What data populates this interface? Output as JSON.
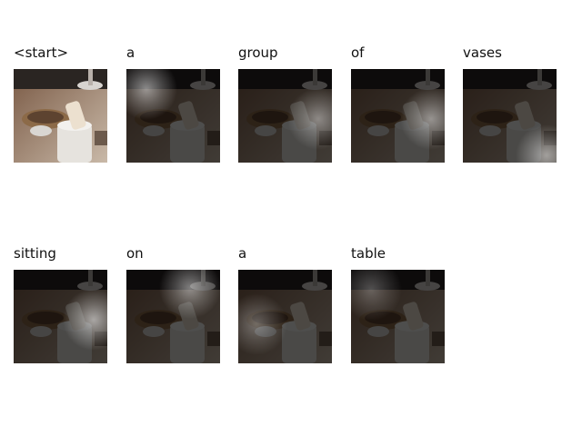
{
  "caption_words": [
    "<start>",
    "a",
    "group",
    "of",
    "vases",
    "sitting",
    "on",
    "a",
    "table"
  ],
  "attention_hotspot": [
    "none",
    "top-left",
    "right",
    "right",
    "bottom-right",
    "right",
    "top-center",
    "left",
    "top-left"
  ],
  "attention_strength": [
    0.0,
    0.55,
    0.45,
    0.5,
    0.55,
    0.6,
    0.5,
    0.35,
    0.3
  ],
  "colors": {
    "background": "#ffffff",
    "text": "#111111",
    "overlay": "#000000",
    "highlight": "#ffffff"
  }
}
